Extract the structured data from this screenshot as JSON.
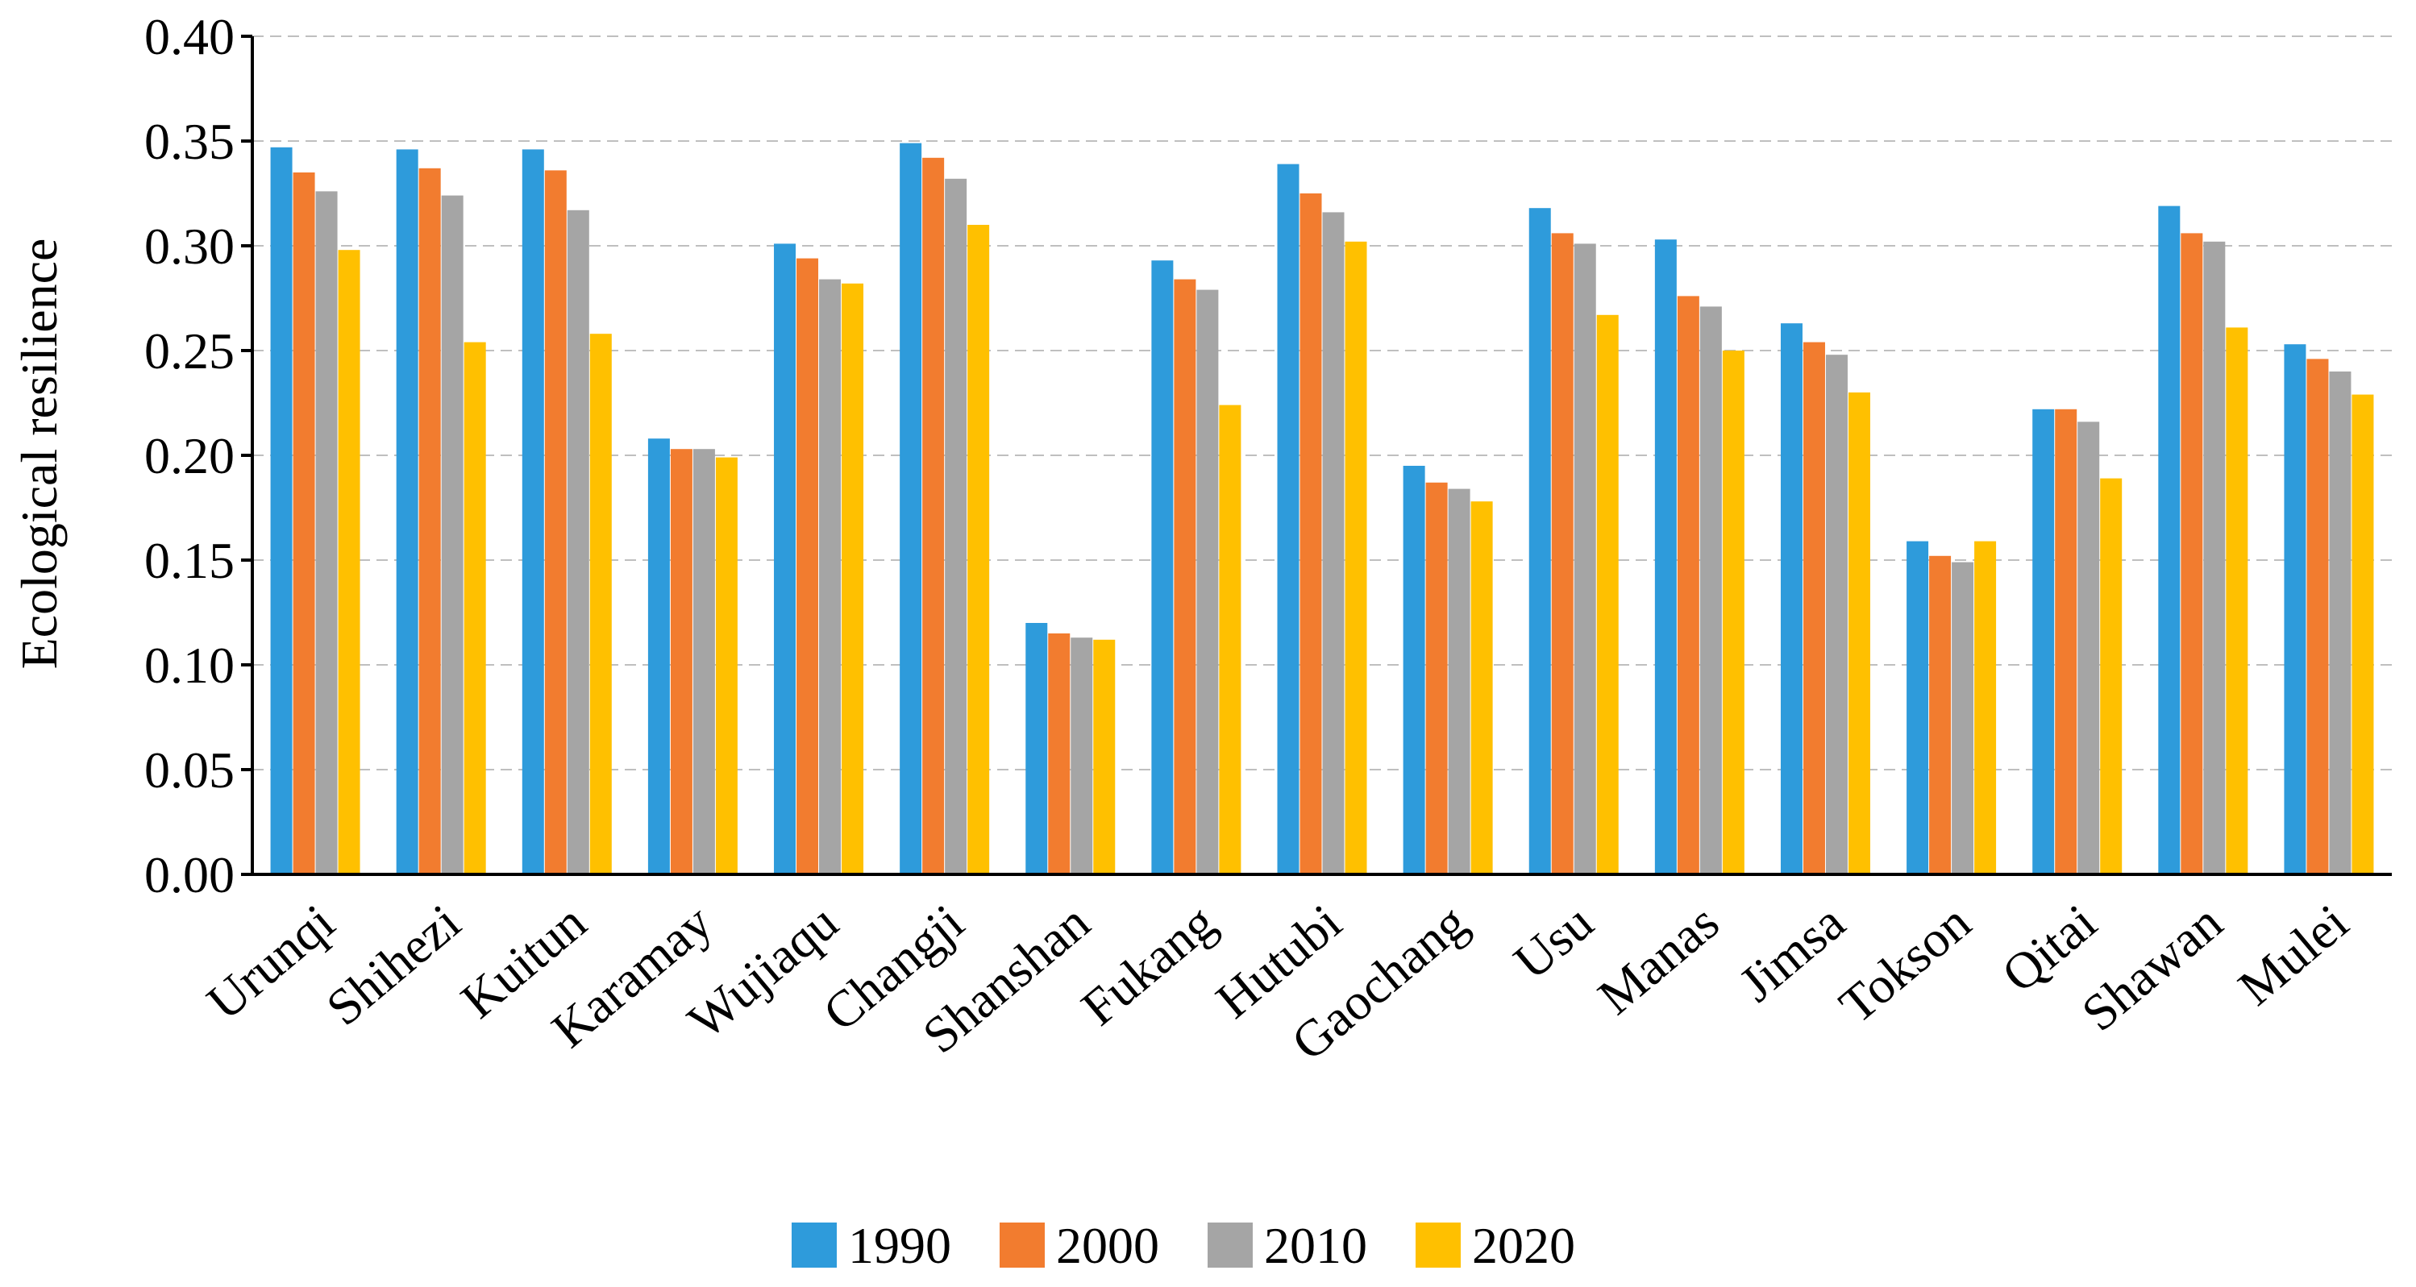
{
  "chart_data": {
    "type": "bar",
    "ylabel": "Ecological resilience",
    "xlabel": "",
    "ylim": [
      0,
      0.4
    ],
    "yticks": [
      "0.00",
      "0.05",
      "0.10",
      "0.15",
      "0.20",
      "0.25",
      "0.30",
      "0.35",
      "0.40"
    ],
    "grid": "horizontal dashed",
    "legend_position": "bottom",
    "categories": [
      "Urunqi",
      "Shihezi",
      "Kuitun",
      "Karamay",
      "Wujiaqu",
      "Changji",
      "Shanshan",
      "Fukang",
      "Hutubi",
      "Gaochang",
      "Usu",
      "Manas",
      "Jimsa",
      "Tokson",
      "Qitai",
      "Shawan",
      "Mulei"
    ],
    "series": [
      {
        "name": "1990",
        "color": "#2E9BDB",
        "values": [
          0.347,
          0.346,
          0.346,
          0.208,
          0.301,
          0.349,
          0.12,
          0.293,
          0.339,
          0.195,
          0.318,
          0.303,
          0.263,
          0.159,
          0.222,
          0.319,
          0.253
        ]
      },
      {
        "name": "2000",
        "color": "#F27C2F",
        "values": [
          0.335,
          0.337,
          0.336,
          0.203,
          0.294,
          0.342,
          0.115,
          0.284,
          0.325,
          0.187,
          0.306,
          0.276,
          0.254,
          0.152,
          0.222,
          0.306,
          0.246
        ]
      },
      {
        "name": "2010",
        "color": "#A5A5A5",
        "values": [
          0.326,
          0.324,
          0.317,
          0.203,
          0.284,
          0.332,
          0.113,
          0.279,
          0.316,
          0.184,
          0.301,
          0.271,
          0.248,
          0.149,
          0.216,
          0.302,
          0.24
        ]
      },
      {
        "name": "2020",
        "color": "#FFC000",
        "values": [
          0.298,
          0.254,
          0.258,
          0.199,
          0.282,
          0.31,
          0.112,
          0.224,
          0.302,
          0.178,
          0.267,
          0.25,
          0.23,
          0.159,
          0.189,
          0.261,
          0.229
        ]
      }
    ]
  }
}
